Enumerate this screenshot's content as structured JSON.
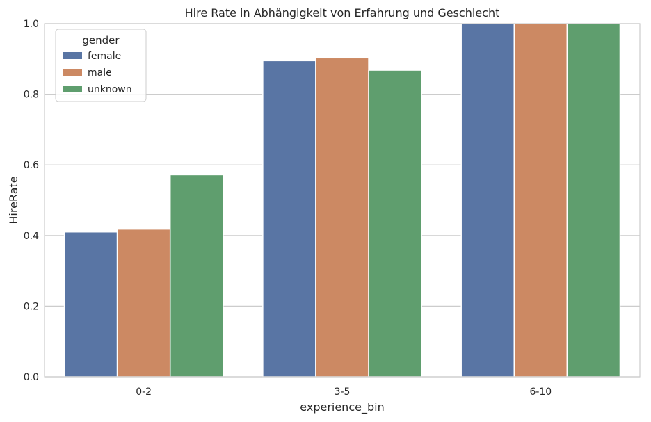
{
  "chart_data": {
    "type": "bar",
    "title": "Hire Rate in Abhängigkeit von Erfahrung und Geschlecht",
    "xlabel": "experience_bin",
    "ylabel": "HireRate",
    "categories": [
      "0-2",
      "3-5",
      "6-10"
    ],
    "ylim": [
      0,
      1.0
    ],
    "yticks": [
      "0.0",
      "0.2",
      "0.4",
      "0.6",
      "0.8",
      "1.0"
    ],
    "grid": "horizontal",
    "legend": {
      "title": "gender",
      "placement": "top-left"
    },
    "series": [
      {
        "name": "female",
        "color": "#5975a4",
        "values": [
          0.41,
          0.895,
          1.0
        ]
      },
      {
        "name": "male",
        "color": "#cc8963",
        "values": [
          0.418,
          0.903,
          1.0
        ]
      },
      {
        "name": "unknown",
        "color": "#5f9e6e",
        "values": [
          0.572,
          0.868,
          1.0
        ]
      }
    ]
  }
}
